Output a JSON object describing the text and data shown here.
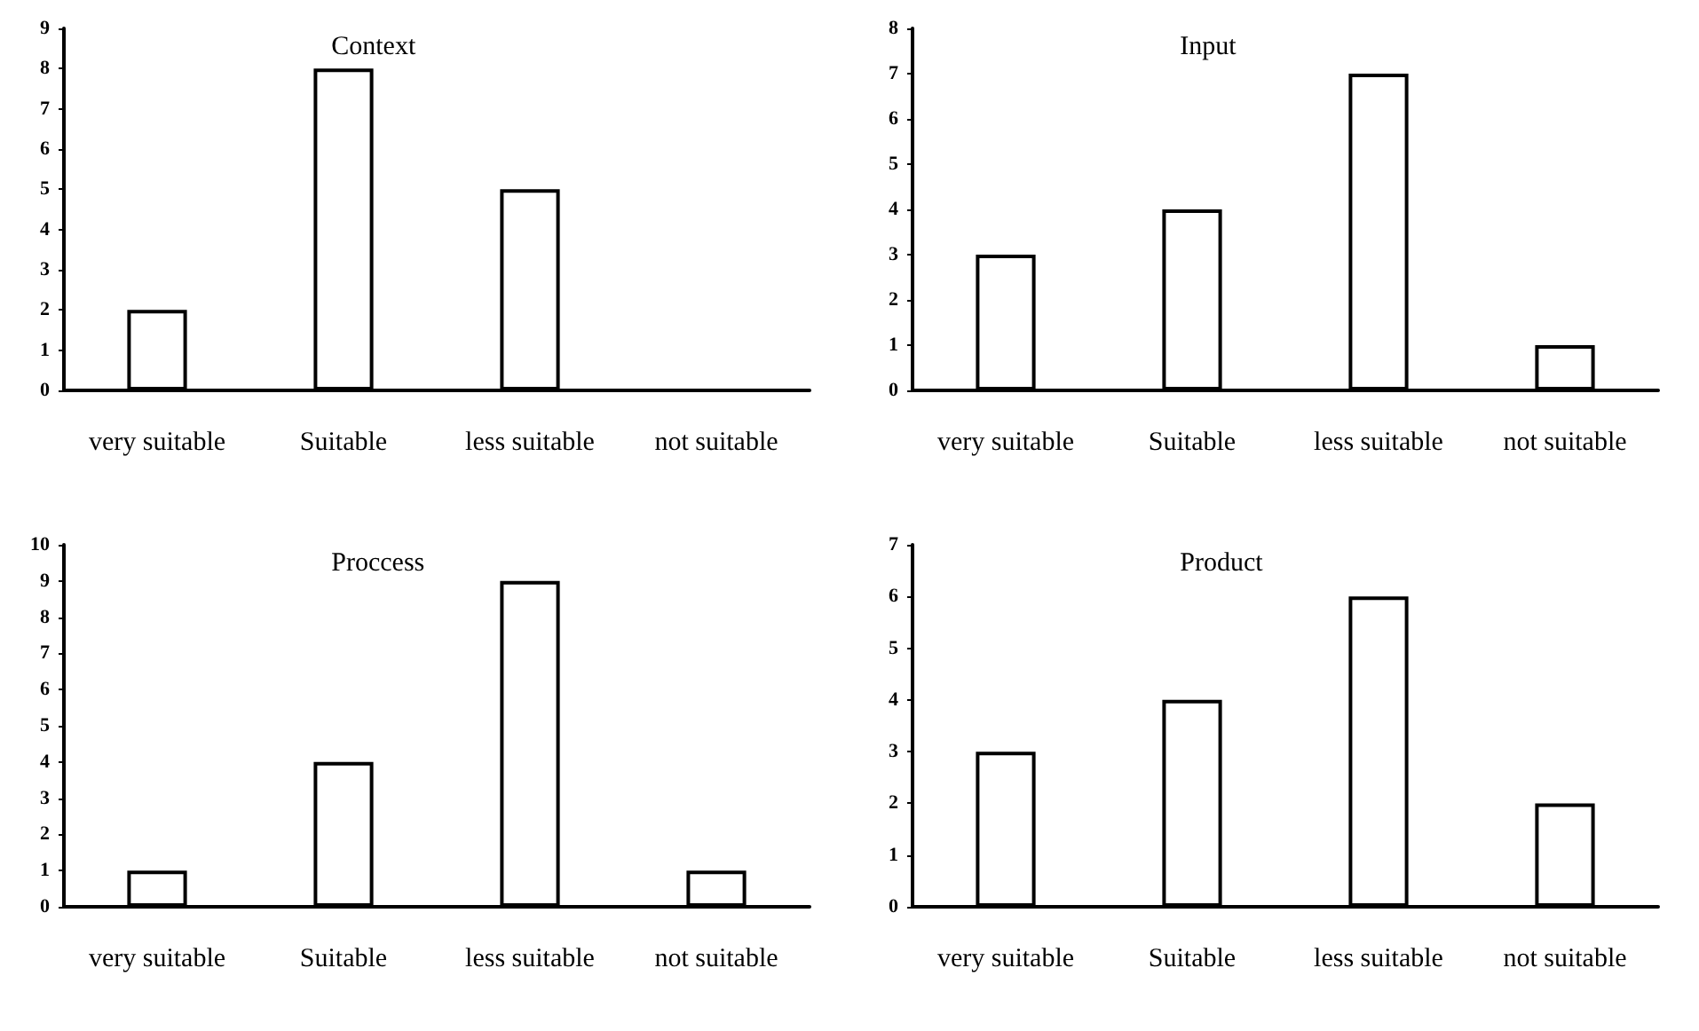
{
  "chart_data": [
    {
      "type": "bar",
      "title": "Context",
      "categories": [
        "very suitable",
        "Suitable",
        "less suitable",
        "not suitable"
      ],
      "values": [
        2,
        8,
        5,
        0
      ],
      "color": "#ffffff",
      "ylim": [
        0,
        9
      ],
      "yticks": [
        0,
        1,
        2,
        3,
        4,
        5,
        6,
        7,
        8,
        9
      ],
      "grid": false
    },
    {
      "type": "bar",
      "title": "Input",
      "categories": [
        "very suitable",
        "Suitable",
        "less suitable",
        "not suitable"
      ],
      "values": [
        3,
        4,
        7,
        1
      ],
      "color": "#ffffff",
      "ylim": [
        0,
        8
      ],
      "yticks": [
        0,
        1,
        2,
        3,
        4,
        5,
        6,
        7,
        8
      ],
      "grid": false
    },
    {
      "type": "bar",
      "title": "Proccess",
      "categories": [
        "very suitable",
        "Suitable",
        "less suitable",
        "not suitable"
      ],
      "values": [
        1,
        4,
        9,
        1
      ],
      "color": "#ffffff",
      "ylim": [
        0,
        10
      ],
      "yticks": [
        0,
        1,
        2,
        3,
        4,
        5,
        6,
        7,
        8,
        9,
        10
      ],
      "grid": false
    },
    {
      "type": "bar",
      "title": "Product",
      "categories": [
        "very suitable",
        "Suitable",
        "less suitable",
        "not suitable"
      ],
      "values": [
        3,
        4,
        6,
        2
      ],
      "color": "#ffffff",
      "ylim": [
        0,
        7
      ],
      "yticks": [
        0,
        1,
        2,
        3,
        4,
        5,
        6,
        7
      ],
      "grid": false
    }
  ]
}
